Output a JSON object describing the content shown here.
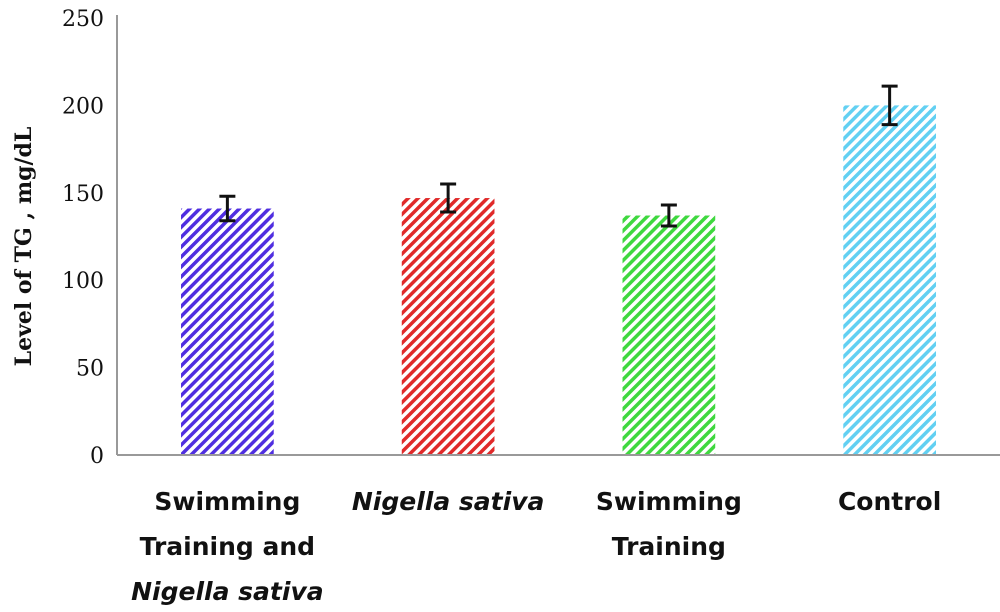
{
  "chart_data": {
    "type": "bar",
    "title": "",
    "xlabel": "",
    "ylabel": "Level of TG , mg/dL",
    "ylim": [
      0,
      250
    ],
    "yticks": [
      0,
      50,
      100,
      150,
      200,
      250
    ],
    "grid": false,
    "categories": [
      {
        "lines": [
          {
            "segments": [
              {
                "text": "Swimming",
                "italic": false
              }
            ]
          },
          {
            "segments": [
              {
                "text": "Training and",
                "italic": false
              }
            ]
          },
          {
            "segments": [
              {
                "text": "Nigella sativa",
                "italic": true
              }
            ]
          }
        ]
      },
      {
        "lines": [
          {
            "segments": [
              {
                "text": "Nigella sativa",
                "italic": true
              }
            ]
          }
        ]
      },
      {
        "lines": [
          {
            "segments": [
              {
                "text": "Swimming",
                "italic": false
              }
            ]
          },
          {
            "segments": [
              {
                "text": "Training",
                "italic": false
              }
            ]
          }
        ]
      },
      {
        "lines": [
          {
            "segments": [
              {
                "text": "Control",
                "italic": false
              }
            ]
          }
        ]
      }
    ],
    "values": [
      141,
      147,
      137,
      200
    ],
    "errors": [
      7,
      8,
      6,
      11
    ],
    "colors": [
      "#4f2ee0",
      "#e02a2a",
      "#3fd83f",
      "#62d0f2"
    ],
    "pattern": "diagonal-hatch"
  }
}
